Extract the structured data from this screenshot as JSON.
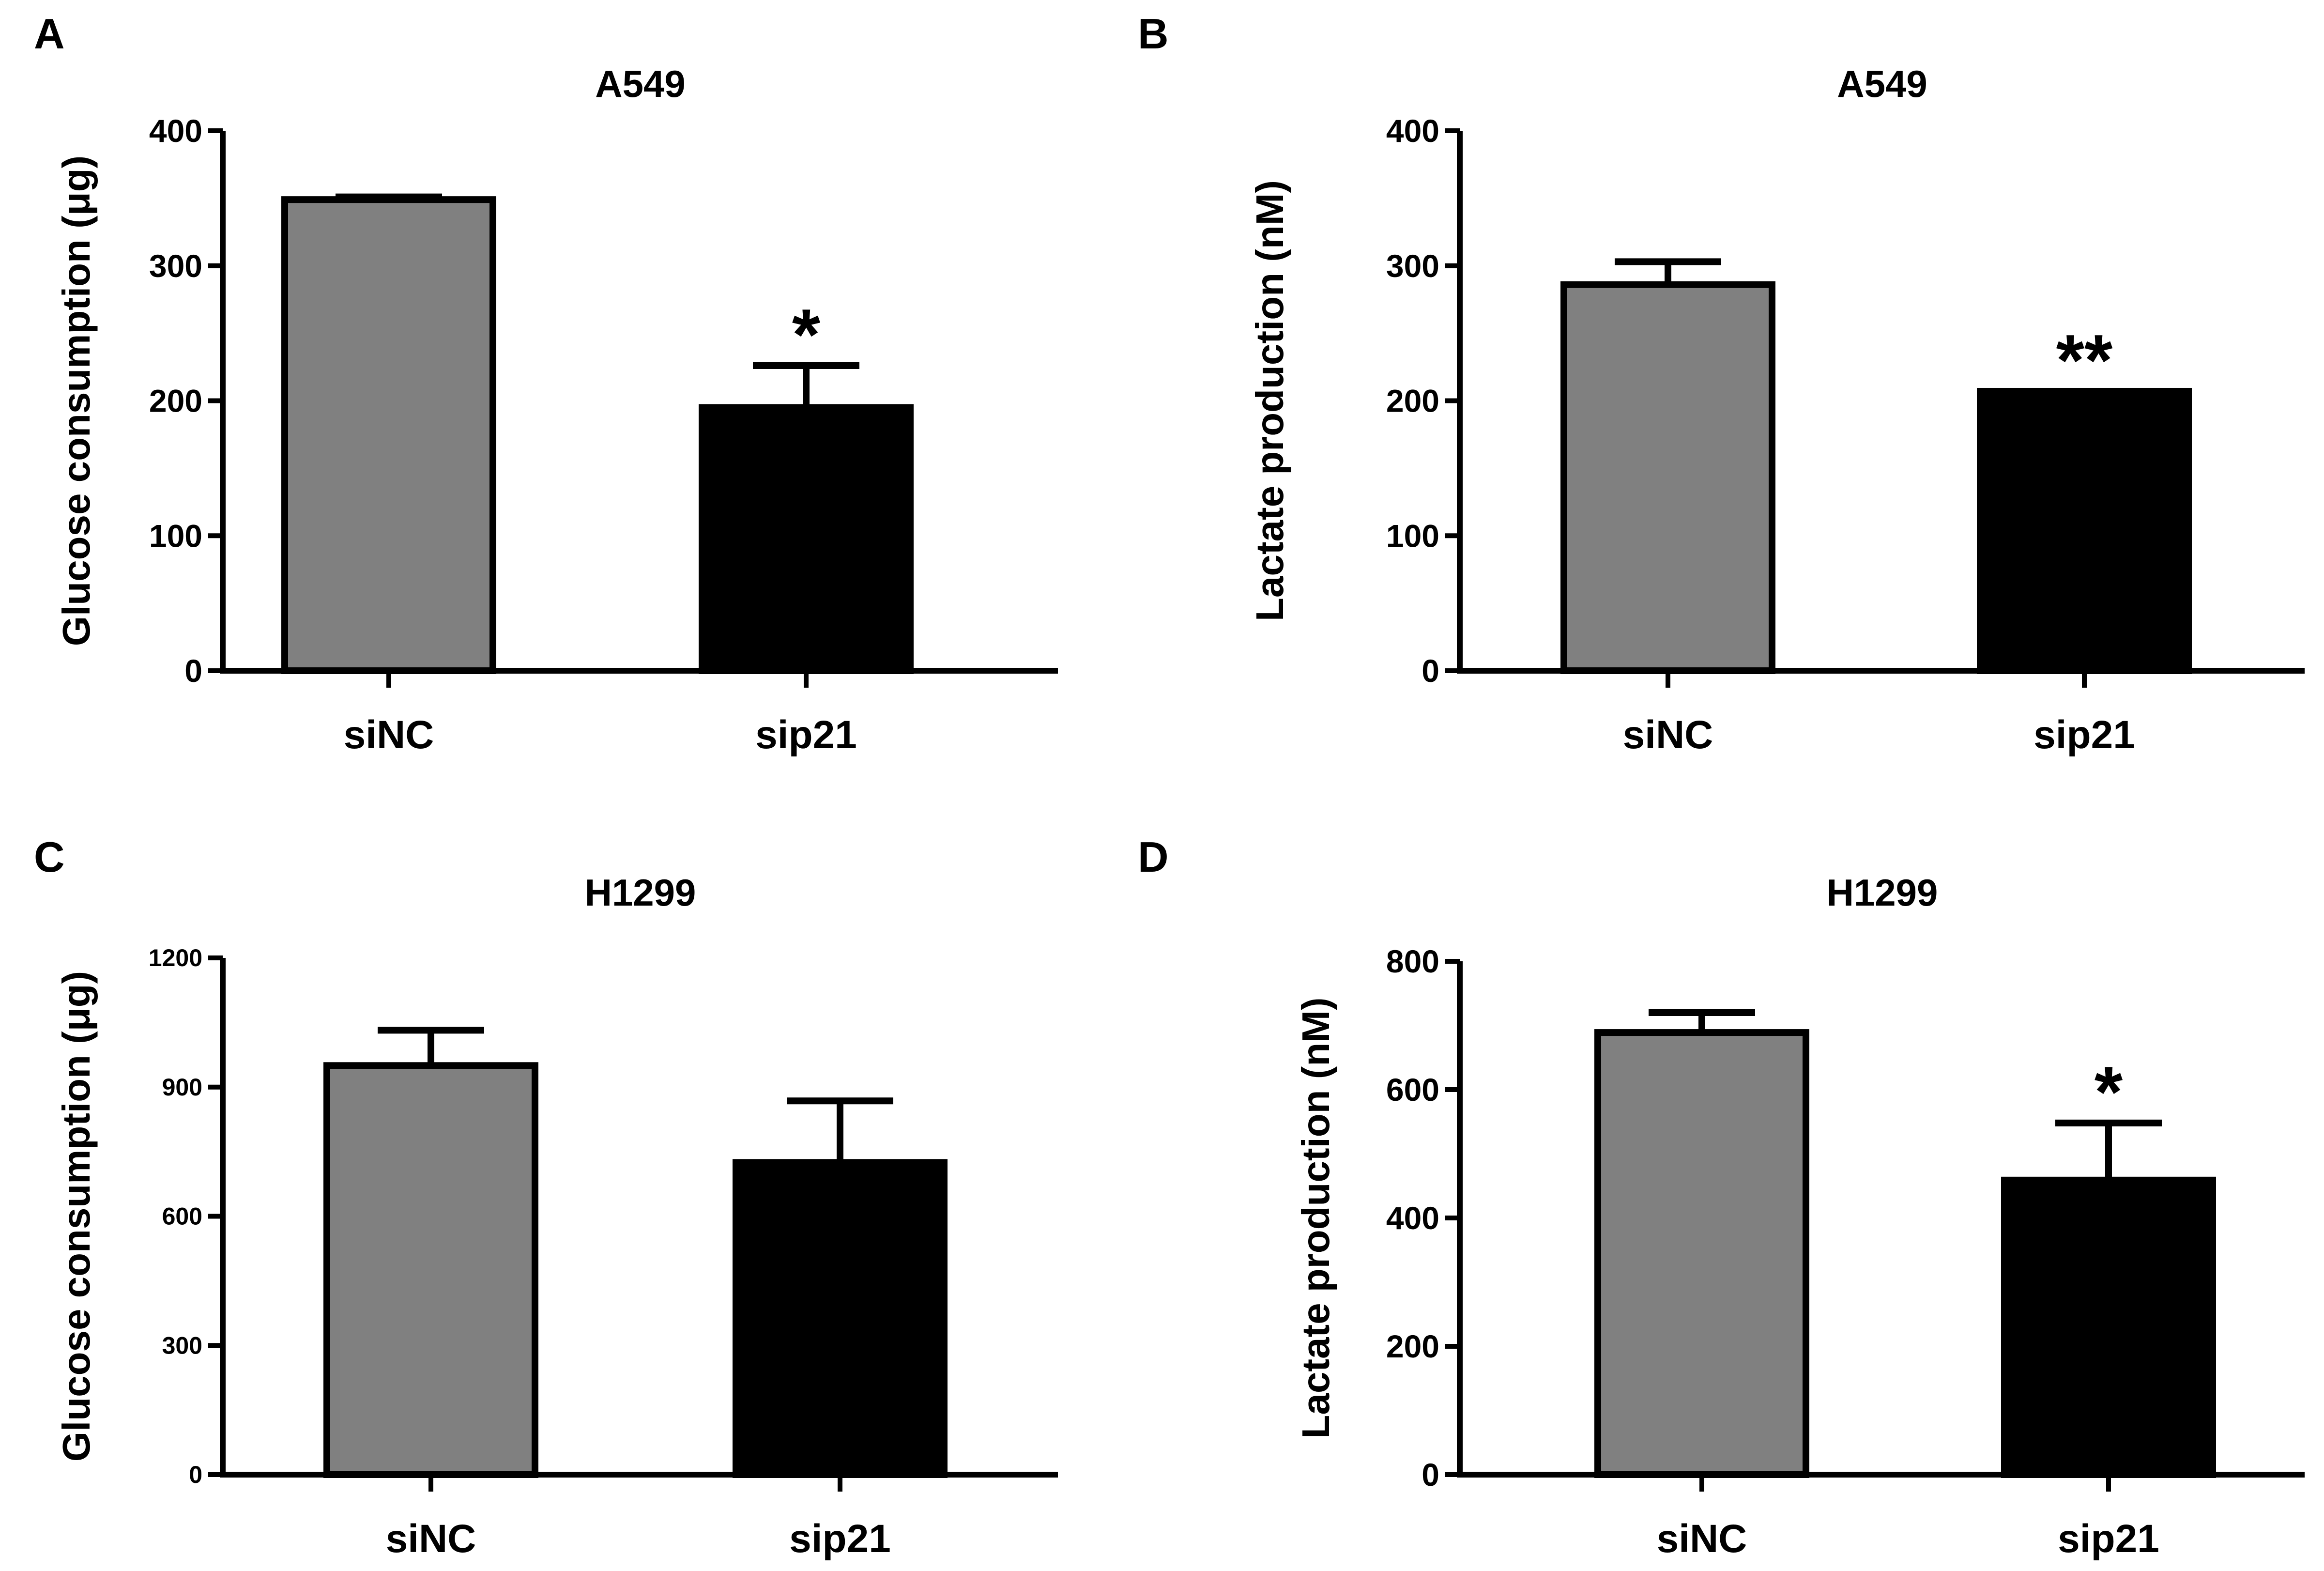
{
  "colors": {
    "siNC": "#808080",
    "sip21": "#000000",
    "axis": "#000000"
  },
  "chart_data": [
    {
      "id": "A",
      "type": "bar",
      "panel_label": "A",
      "title": "A549",
      "ylabel": "Glucose consumption (μg)",
      "categories": [
        "siNC",
        "sip21"
      ],
      "values": [
        349,
        195
      ],
      "errors": [
        2,
        31
      ],
      "significance": [
        "",
        "*"
      ],
      "ylim": [
        0,
        400
      ],
      "yticks": [
        0,
        100,
        200,
        300,
        400
      ],
      "tick_labels": [
        "0",
        "100",
        "200",
        "300",
        "400"
      ]
    },
    {
      "id": "B",
      "type": "bar",
      "panel_label": "B",
      "title": "A549",
      "ylabel": "Lactate production (nM)",
      "categories": [
        "siNC",
        "sip21"
      ],
      "values": [
        286,
        207
      ],
      "errors": [
        17,
        0
      ],
      "significance": [
        "",
        "**"
      ],
      "ylim": [
        0,
        400
      ],
      "yticks": [
        0,
        100,
        200,
        300,
        400
      ],
      "tick_labels": [
        "0",
        "100",
        "200",
        "300",
        "400"
      ]
    },
    {
      "id": "C",
      "type": "bar",
      "panel_label": "C",
      "title": "H1299",
      "ylabel": "Glucose consumption (μg)",
      "categories": [
        "siNC",
        "sip21"
      ],
      "values": [
        950,
        725
      ],
      "errors": [
        82,
        143
      ],
      "significance": [
        "",
        ""
      ],
      "ylim": [
        0,
        1200
      ],
      "yticks": [
        0,
        300,
        600,
        900,
        1200
      ],
      "tick_labels": [
        "0",
        "300",
        "600",
        "900",
        "1200"
      ]
    },
    {
      "id": "D",
      "type": "bar",
      "panel_label": "D",
      "title": "H1299",
      "ylabel": "Lactate production (nM)",
      "categories": [
        "siNC",
        "sip21"
      ],
      "values": [
        689,
        459
      ],
      "errors": [
        31,
        89
      ],
      "significance": [
        "",
        "*"
      ],
      "ylim": [
        0,
        800
      ],
      "yticks": [
        0,
        200,
        400,
        600,
        800
      ],
      "tick_labels": [
        "0",
        "200",
        "400",
        "600",
        "800"
      ]
    }
  ]
}
